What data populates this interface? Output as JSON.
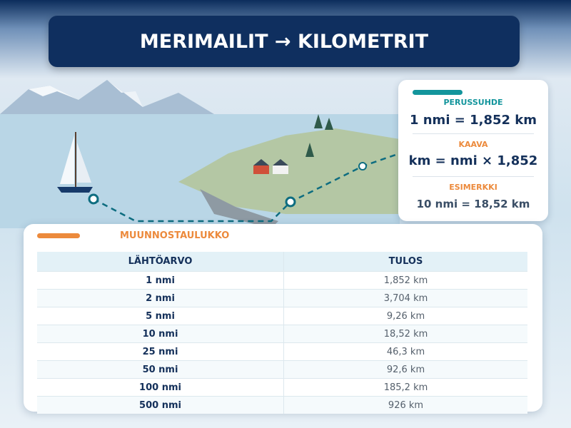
{
  "header": {
    "title": "MERIMAILIT → KILOMETRIT"
  },
  "info_card": {
    "sections": [
      {
        "label": "PERUSSUHDE",
        "text": "1 nmi = 1,852 km"
      },
      {
        "label": "KAAVA",
        "text": "km = nmi × 1,852"
      },
      {
        "label": "ESIMERKKI",
        "text": "10 nmi = 18,52 km"
      }
    ]
  },
  "table": {
    "title": "MUUNNOSTAULUKKO",
    "columns": [
      "LÄHTÖARVO",
      "TULOS"
    ],
    "rows": [
      [
        "1 nmi",
        "1,852 km"
      ],
      [
        "2 nmi",
        "3,704 km"
      ],
      [
        "5 nmi",
        "9,26 km"
      ],
      [
        "10 nmi",
        "18,52 km"
      ],
      [
        "25 nmi",
        "46,3 km"
      ],
      [
        "50 nmi",
        "92,6 km"
      ],
      [
        "100 nmi",
        "185,2 km"
      ],
      [
        "500 nmi",
        "926 km"
      ]
    ]
  }
}
